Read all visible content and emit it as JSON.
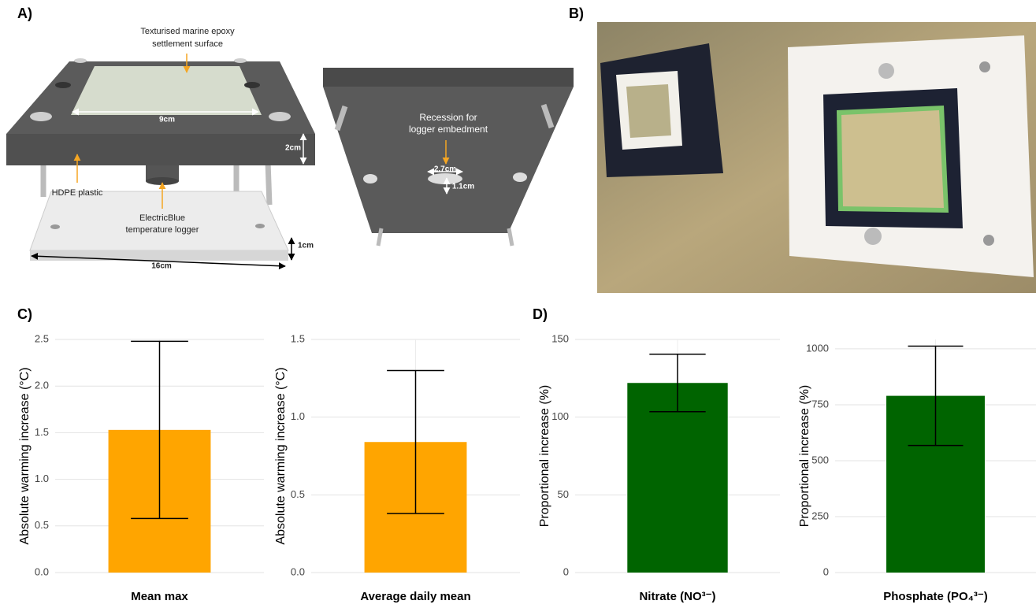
{
  "figure": {
    "panels": [
      "A)",
      "B)",
      "C)",
      "D)"
    ],
    "annotations": {
      "surface": [
        "Texturised marine epoxy",
        "settlement surface"
      ],
      "width_inner": "9cm",
      "height_top": "2cm",
      "plastic": "HDPE plastic",
      "logger": [
        "ElectricBlue",
        "temperature logger"
      ],
      "height_bottom": "1cm",
      "width_outer": "16cm",
      "recession": [
        "Recession for",
        "logger embedment"
      ],
      "recess_width": "2.7cm",
      "recess_depth": "1.1cm"
    }
  },
  "chart_data": [
    {
      "type": "bar",
      "y_label": "Absolute warming increase (°C)",
      "categories": [
        "Mean max"
      ],
      "values": [
        1.53
      ],
      "errors": [
        0.95
      ],
      "color": "#ffa500",
      "ylim": [
        0,
        2.5
      ],
      "yticks": [
        {
          "value": 0,
          "label": "0.0"
        },
        {
          "value": 0.5,
          "label": "0.5"
        },
        {
          "value": 1,
          "label": "1.0"
        },
        {
          "value": 1.5,
          "label": "1.5"
        },
        {
          "value": 2,
          "label": "2.0"
        },
        {
          "value": 2.5,
          "label": "2.5"
        }
      ],
      "grid": true
    },
    {
      "type": "bar",
      "y_label": "Absolute warming increase (°C)",
      "categories": [
        "Average daily mean"
      ],
      "values": [
        0.84
      ],
      "errors": [
        0.46
      ],
      "color": "#ffa500",
      "ylim": [
        0,
        1.5
      ],
      "yticks": [
        {
          "value": 0,
          "label": "0.0"
        },
        {
          "value": 0.5,
          "label": "0.5"
        },
        {
          "value": 1,
          "label": "1.0"
        },
        {
          "value": 1.5,
          "label": "1.5"
        }
      ],
      "grid": true
    },
    {
      "type": "bar",
      "y_label": "Proportional increase (%)",
      "categories": [
        "Nitrate (NO³⁻)"
      ],
      "values": [
        122
      ],
      "errors": [
        18.5
      ],
      "color": "#006400",
      "ylim": [
        0,
        150
      ],
      "yticks": [
        0,
        50,
        100,
        150
      ],
      "grid": true
    },
    {
      "type": "bar",
      "y_label": "Proportional increase (%)",
      "categories": [
        "Phosphate (PO₄³⁻)"
      ],
      "values": [
        790
      ],
      "errors": [
        222
      ],
      "color": "#006400",
      "ylim": [
        0,
        1042
      ],
      "yticks": [
        0,
        250,
        500,
        750,
        1000
      ],
      "grid": true
    }
  ]
}
